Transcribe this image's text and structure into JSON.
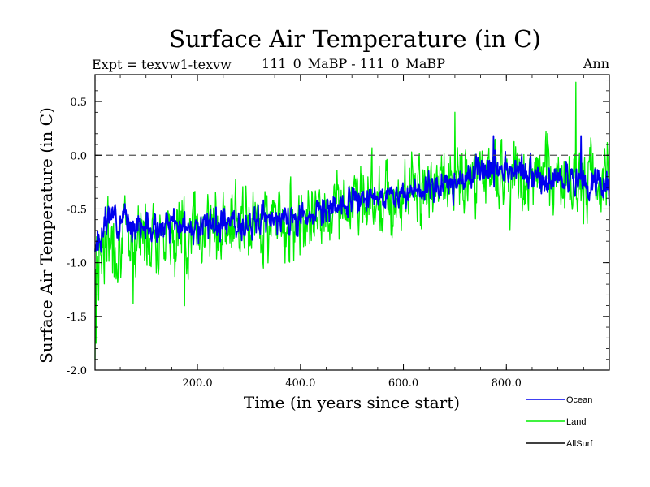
{
  "chart_data": {
    "type": "line",
    "title": "Surface Air Temperature (in C)",
    "subtitle_left": "Expt = texvw1-texvw",
    "subtitle_center": "111_0_MaBP - 111_0_MaBP",
    "subtitle_right": "Ann",
    "xlabel": "Time (in years since start)",
    "ylabel": "Surface Air Temperature (in C)",
    "xlim": [
      1,
      1000
    ],
    "ylim": [
      -2.0,
      0.75
    ],
    "x_ticks": [
      200,
      400,
      600,
      800
    ],
    "x_tick_labels": [
      "200.0",
      "400.0",
      "600.0",
      "800.0"
    ],
    "y_ticks": [
      -2.0,
      -1.5,
      -1.0,
      -0.5,
      0.0,
      0.5
    ],
    "y_tick_labels": [
      "-2.0",
      "-1.5",
      "-1.0",
      "-0.5",
      "0.0",
      "0.5"
    ],
    "reference_line": 0.0,
    "x_points": 1000,
    "series": [
      {
        "name": "Land",
        "color": "#00ee00",
        "trend": [
          [
            1,
            -0.85
          ],
          [
            100,
            -0.72
          ],
          [
            200,
            -0.68
          ],
          [
            300,
            -0.64
          ],
          [
            380,
            -0.58
          ],
          [
            460,
            -0.48
          ],
          [
            560,
            -0.38
          ],
          [
            680,
            -0.28
          ],
          [
            780,
            -0.16
          ],
          [
            880,
            -0.22
          ],
          [
            1000,
            -0.25
          ]
        ],
        "amplitude": 0.3,
        "seed": 7,
        "extremes": [
          [
            1,
            -1.9
          ],
          [
            3,
            -1.75
          ],
          [
            8,
            -1.35
          ],
          [
            75,
            -1.38
          ],
          [
            175,
            -1.4
          ],
          [
            700,
            0.4
          ],
          [
            935,
            0.68
          ]
        ]
      },
      {
        "name": "Ocean",
        "color": "#0000ee",
        "trend": [
          [
            1,
            -0.9
          ],
          [
            30,
            -0.55
          ],
          [
            100,
            -0.68
          ],
          [
            200,
            -0.66
          ],
          [
            300,
            -0.62
          ],
          [
            380,
            -0.6
          ],
          [
            460,
            -0.5
          ],
          [
            560,
            -0.38
          ],
          [
            680,
            -0.28
          ],
          [
            780,
            -0.1
          ],
          [
            880,
            -0.22
          ],
          [
            1000,
            -0.3
          ]
        ],
        "amplitude": 0.12,
        "seed": 3,
        "extremes": [
          [
            775,
            0.18
          ],
          [
            945,
            0.18
          ]
        ]
      }
    ],
    "legend": [
      {
        "label": "Ocean",
        "color": "#0000ee"
      },
      {
        "label": "Land",
        "color": "#00ee00"
      },
      {
        "label": "AllSurf",
        "color": "#000000"
      }
    ]
  }
}
